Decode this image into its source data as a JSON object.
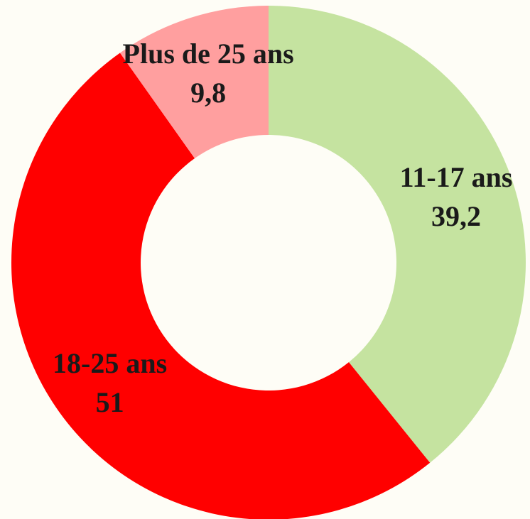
{
  "chart_data": {
    "type": "donut",
    "categories": [
      "11-17 ans",
      "18-25 ans",
      "Plus de 25 ans"
    ],
    "values": [
      39.2,
      51,
      9.8
    ],
    "value_labels": [
      "39,2",
      "51",
      "9,8"
    ],
    "colors": [
      "#c5e3a0",
      "#ff0000",
      "#ff9f9f"
    ]
  }
}
